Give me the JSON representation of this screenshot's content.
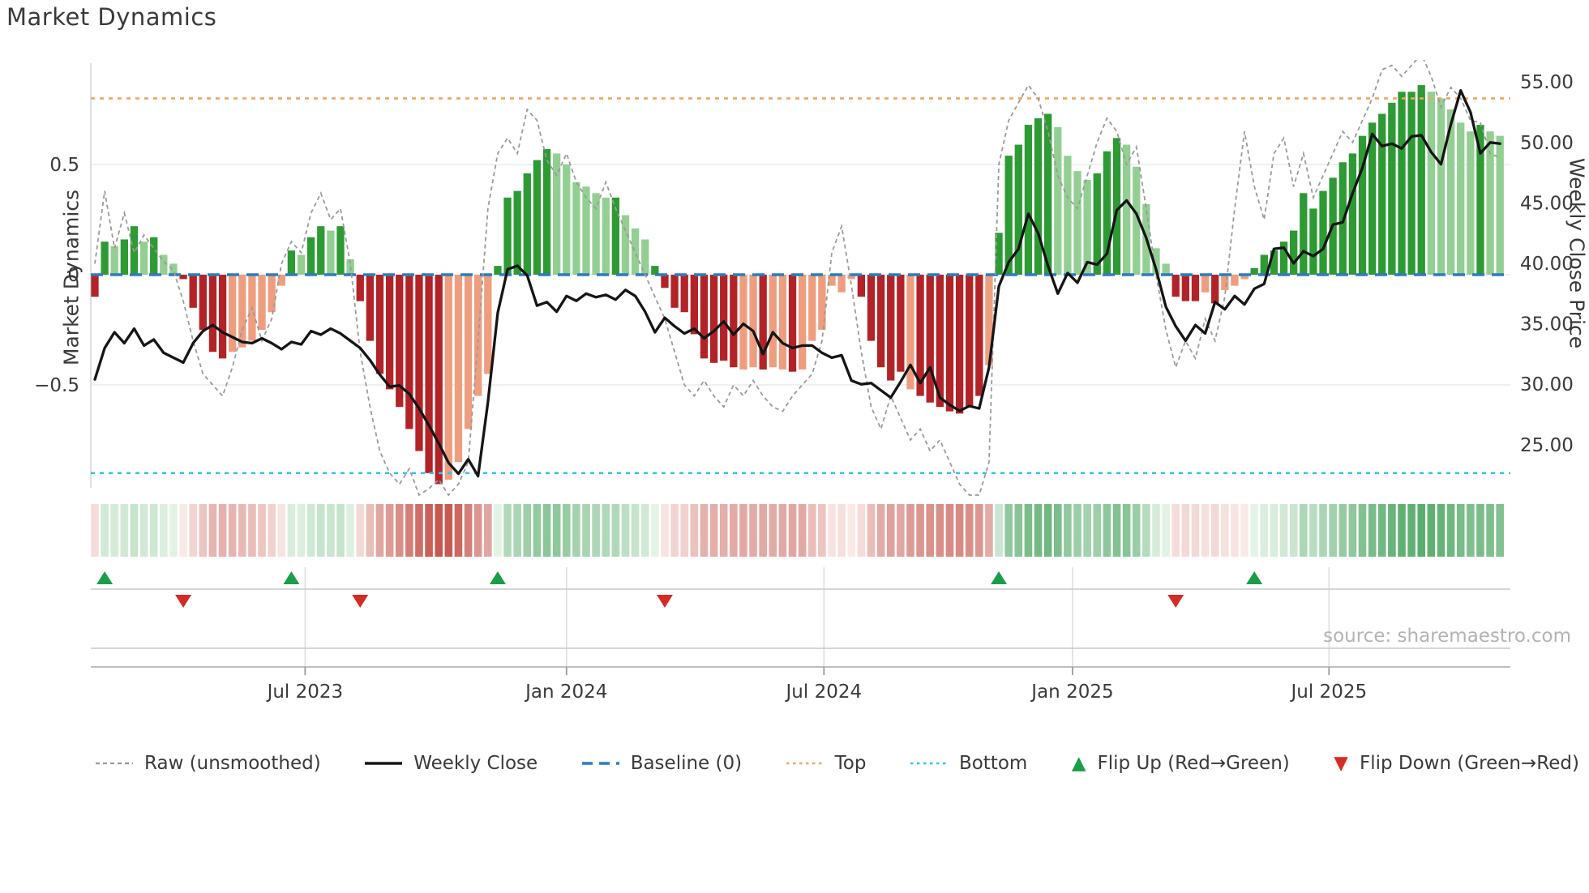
{
  "page": {
    "title": "Market Dynamics",
    "source": "source: sharemaestro.com"
  },
  "axes": {
    "left_label": "Market Dynamics",
    "right_label": "Weekly Close Price",
    "left_ticks": [
      {
        "v": 0.5,
        "label": "0.5"
      },
      {
        "v": 0.0,
        "label": "0"
      },
      {
        "v": -0.5,
        "label": "−0.5"
      }
    ],
    "right_ticks": [
      {
        "v": 55,
        "label": "55.00"
      },
      {
        "v": 50,
        "label": "50.00"
      },
      {
        "v": 45,
        "label": "45.00"
      },
      {
        "v": 40,
        "label": "40.00"
      },
      {
        "v": 35,
        "label": "35.00"
      },
      {
        "v": 30,
        "label": "30.00"
      },
      {
        "v": 25,
        "label": "25.00"
      }
    ],
    "x_ticks": [
      {
        "week": 21.4,
        "label": "Jul 2023"
      },
      {
        "week": 48.0,
        "label": "Jan 2024"
      },
      {
        "week": 74.2,
        "label": "Jul 2024"
      },
      {
        "week": 99.5,
        "label": "Jan 2025"
      },
      {
        "week": 125.6,
        "label": "Jul 2025"
      }
    ]
  },
  "legend": {
    "items": [
      {
        "key": "raw",
        "label": "Raw (unsmoothed)"
      },
      {
        "key": "close",
        "label": "Weekly Close"
      },
      {
        "key": "baseline",
        "label": "Baseline (0)"
      },
      {
        "key": "top",
        "label": "Top"
      },
      {
        "key": "bottom",
        "label": "Bottom"
      },
      {
        "key": "flip_up",
        "label": "Flip Up (Red→Green)"
      },
      {
        "key": "flip_down",
        "label": "Flip Down (Green→Red)"
      }
    ]
  },
  "colors": {
    "bar_green_dark": "#2d9a33",
    "bar_green_light": "#93cf93",
    "bar_red_dark": "#b22328",
    "bar_red_light": "#ee9e7f",
    "price_line": "#151515",
    "raw_line": "#9a9a9a",
    "baseline": "#2b7cbe",
    "top_line": "#f2a45f",
    "bottom_line": "#35c3e8",
    "grid_main": "#e8ebf1",
    "grid_lower": "#c9c9c9",
    "grid_lower_vertical": "#dcdcdc",
    "flip_up": "#1a9e47",
    "flip_down": "#d62b23",
    "tick_text": "#3a3a3a",
    "heat_green_max": "#4da662",
    "heat_green_min": "#eaf6ec",
    "heat_red_max": "#c6584f",
    "heat_red_min": "#faecea"
  },
  "chart_data": {
    "type": "bar",
    "description": "Weekly market-dynamics oscillator bars (left axis) with raw unsmoothed overlay, weekly close price line (right axis), top/bottom threshold lines, baseline, regime heat strip and flip markers. 144 weekly points from early Feb 2023 to early Nov 2025.",
    "x_unit": "week_index",
    "left_ylim": [
      -1.05,
      0.95
    ],
    "right_ylim": [
      21.5,
      56.5
    ],
    "baseline": 0.0,
    "top_threshold": 0.8,
    "bottom_threshold": -0.9,
    "flip_up_weeks": [
      1,
      20,
      41,
      92,
      118
    ],
    "flip_down_weeks": [
      9,
      27,
      58,
      110
    ],
    "bar_shade": "rgGggGgGGrrrrrRRRRRRgGggGgGrrrrrrrrrRRRRRggggggGGGGGGgGGGgrrrrrrrrRRrRRrRRRRRRrrrrrRrrrrrrrRggggggGGGGgggGGGGGrrrRrRRRggggggggggggggggggGGGGGgGG",
    "series": [
      {
        "name": "Dynamics (bars)",
        "axis": "left",
        "values": [
          -0.1,
          0.15,
          0.13,
          0.16,
          0.22,
          0.15,
          0.17,
          0.09,
          0.05,
          -0.02,
          -0.15,
          -0.25,
          -0.35,
          -0.38,
          -0.35,
          -0.33,
          -0.3,
          -0.25,
          -0.17,
          -0.05,
          0.11,
          0.09,
          0.17,
          0.22,
          0.2,
          0.22,
          0.07,
          -0.12,
          -0.3,
          -0.45,
          -0.52,
          -0.6,
          -0.7,
          -0.8,
          -0.9,
          -0.95,
          -0.93,
          -0.85,
          -0.7,
          -0.55,
          -0.45,
          0.04,
          0.35,
          0.38,
          0.46,
          0.52,
          0.57,
          0.55,
          0.5,
          0.42,
          0.4,
          0.37,
          0.35,
          0.35,
          0.27,
          0.21,
          0.16,
          0.04,
          -0.06,
          -0.15,
          -0.17,
          -0.27,
          -0.38,
          -0.4,
          -0.39,
          -0.42,
          -0.43,
          -0.42,
          -0.43,
          -0.42,
          -0.43,
          -0.44,
          -0.43,
          -0.3,
          -0.25,
          -0.05,
          -0.08,
          -0.02,
          -0.1,
          -0.3,
          -0.42,
          -0.48,
          -0.44,
          -0.52,
          -0.55,
          -0.58,
          -0.6,
          -0.62,
          -0.63,
          -0.6,
          -0.55,
          -0.41,
          0.19,
          0.54,
          0.59,
          0.68,
          0.71,
          0.73,
          0.67,
          0.54,
          0.47,
          0.43,
          0.46,
          0.56,
          0.62,
          0.59,
          0.49,
          0.32,
          0.12,
          0.05,
          -0.1,
          -0.12,
          -0.12,
          -0.08,
          -0.13,
          -0.07,
          -0.05,
          -0.02,
          0.03,
          0.09,
          0.11,
          0.15,
          0.2,
          0.37,
          0.3,
          0.38,
          0.44,
          0.51,
          0.55,
          0.63,
          0.69,
          0.73,
          0.78,
          0.83,
          0.83,
          0.86,
          0.83,
          0.8,
          0.75,
          0.69,
          0.65,
          0.68,
          0.65,
          0.63
        ]
      },
      {
        "name": "Raw (unsmoothed)",
        "axis": "left",
        "values": [
          0.05,
          0.38,
          0.12,
          0.28,
          0.1,
          0.18,
          0.12,
          0.06,
          0.02,
          -0.12,
          -0.3,
          -0.45,
          -0.5,
          -0.55,
          -0.42,
          -0.25,
          -0.15,
          -0.3,
          -0.2,
          0.05,
          0.15,
          0.1,
          0.28,
          0.37,
          0.25,
          0.3,
          0.05,
          -0.35,
          -0.6,
          -0.8,
          -0.9,
          -0.95,
          -0.88,
          -1.0,
          -0.97,
          -0.93,
          -1.0,
          -0.95,
          -0.85,
          -0.3,
          0.3,
          0.55,
          0.62,
          0.55,
          0.75,
          0.7,
          0.52,
          0.45,
          0.55,
          0.42,
          0.35,
          0.3,
          0.42,
          0.3,
          0.2,
          0.1,
          0.0,
          -0.1,
          -0.2,
          -0.35,
          -0.5,
          -0.55,
          -0.48,
          -0.55,
          -0.6,
          -0.5,
          -0.55,
          -0.48,
          -0.55,
          -0.6,
          -0.62,
          -0.55,
          -0.5,
          -0.45,
          -0.3,
          0.1,
          0.22,
          -0.05,
          -0.35,
          -0.6,
          -0.7,
          -0.55,
          -0.65,
          -0.75,
          -0.7,
          -0.8,
          -0.75,
          -0.85,
          -0.95,
          -1.0,
          -1.0,
          -0.85,
          0.5,
          0.7,
          0.78,
          0.86,
          0.8,
          0.65,
          0.45,
          0.35,
          0.3,
          0.45,
          0.6,
          0.71,
          0.65,
          0.5,
          0.58,
          0.3,
          0.0,
          -0.25,
          -0.42,
          -0.3,
          -0.38,
          -0.2,
          -0.3,
          -0.1,
          0.3,
          0.65,
          0.4,
          0.25,
          0.55,
          0.62,
          0.4,
          0.55,
          0.35,
          0.45,
          0.55,
          0.65,
          0.6,
          0.7,
          0.8,
          0.93,
          0.95,
          0.9,
          0.95,
          1.0,
          0.9,
          0.76,
          0.85,
          0.8,
          0.7,
          0.69,
          0.55,
          0.53
        ]
      },
      {
        "name": "Weekly Close",
        "axis": "right",
        "values": [
          30.4,
          33.0,
          34.3,
          33.4,
          34.6,
          33.2,
          33.7,
          32.6,
          32.2,
          31.8,
          33.4,
          34.4,
          34.9,
          34.3,
          33.9,
          33.5,
          33.4,
          33.8,
          33.4,
          32.9,
          33.5,
          33.3,
          34.4,
          34.1,
          34.6,
          34.2,
          33.6,
          33.0,
          32.0,
          30.8,
          29.8,
          29.9,
          29.2,
          28.0,
          26.6,
          25.1,
          23.5,
          22.6,
          23.8,
          22.4,
          28.5,
          35.9,
          39.5,
          39.8,
          39.0,
          36.5,
          36.8,
          36.0,
          37.3,
          36.9,
          37.5,
          37.2,
          37.4,
          37.0,
          37.8,
          37.3,
          36.0,
          34.3,
          35.5,
          34.8,
          34.2,
          34.6,
          33.8,
          34.4,
          35.2,
          34.1,
          35.0,
          34.4,
          32.5,
          34.3,
          33.4,
          33.0,
          33.2,
          33.2,
          32.6,
          32.2,
          32.4,
          30.3,
          30.0,
          30.1,
          29.5,
          28.9,
          30.2,
          31.6,
          30.1,
          31.4,
          28.9,
          28.3,
          27.8,
          28.2,
          28.0,
          31.4,
          38.1,
          40.1,
          41.2,
          44.1,
          42.5,
          39.8,
          37.5,
          39.2,
          38.4,
          40.1,
          39.9,
          40.8,
          44.4,
          45.2,
          44.1,
          42.1,
          39.5,
          36.4,
          34.8,
          33.6,
          34.9,
          34.2,
          36.8,
          36.2,
          37.3,
          36.6,
          37.9,
          38.3,
          41.2,
          41.3,
          40.0,
          41.0,
          40.6,
          41.2,
          43.2,
          43.4,
          45.8,
          47.9,
          50.7,
          49.7,
          49.9,
          49.5,
          50.5,
          50.6,
          49.2,
          48.2,
          51.5,
          54.3,
          52.5,
          49.1,
          50.0,
          49.9
        ]
      }
    ]
  }
}
